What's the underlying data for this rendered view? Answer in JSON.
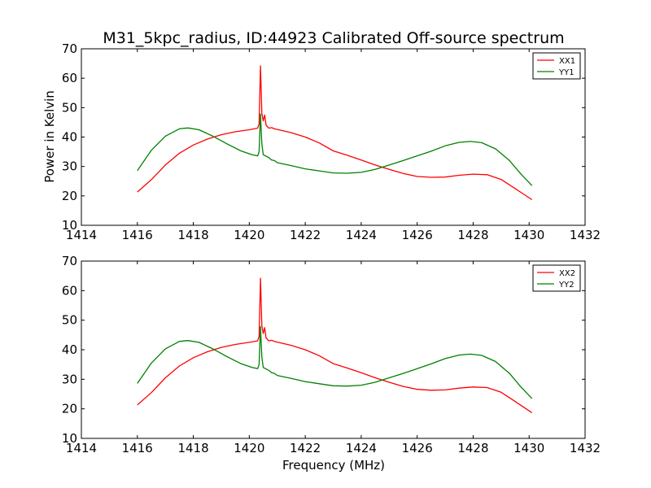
{
  "chart_data": [
    {
      "type": "line",
      "title": "M31_5kpc_radius, ID:44923 Calibrated Off-source spectrum",
      "xlabel": "",
      "ylabel": "Power in Kelvin",
      "xlim": [
        1414,
        1432
      ],
      "ylim": [
        10,
        70
      ],
      "xticks": [
        1414,
        1416,
        1418,
        1420,
        1422,
        1424,
        1426,
        1428,
        1430,
        1432
      ],
      "yticks": [
        10,
        20,
        30,
        40,
        50,
        60,
        70
      ],
      "grid": false,
      "legend_position": "top-right",
      "series": [
        {
          "name": "XX1",
          "color": "#ff0000",
          "points": [
            [
              1416.0,
              21.3
            ],
            [
              1416.5,
              25.5
            ],
            [
              1417.0,
              30.5
            ],
            [
              1417.5,
              34.5
            ],
            [
              1418.0,
              37.3
            ],
            [
              1418.5,
              39.3
            ],
            [
              1419.0,
              40.8
            ],
            [
              1419.5,
              41.8
            ],
            [
              1420.0,
              42.5
            ],
            [
              1420.3,
              43.0
            ],
            [
              1420.35,
              44.5
            ],
            [
              1420.4,
              64.2
            ],
            [
              1420.45,
              48.0
            ],
            [
              1420.5,
              45.5
            ],
            [
              1420.55,
              47.5
            ],
            [
              1420.6,
              44.0
            ],
            [
              1420.7,
              43.0
            ],
            [
              1420.8,
              43.2
            ],
            [
              1420.9,
              42.8
            ],
            [
              1421.0,
              42.6
            ],
            [
              1421.5,
              41.5
            ],
            [
              1422.0,
              40.0
            ],
            [
              1422.5,
              38.0
            ],
            [
              1423.0,
              35.3
            ],
            [
              1423.5,
              33.8
            ],
            [
              1424.0,
              32.2
            ],
            [
              1424.5,
              30.5
            ],
            [
              1425.0,
              29.0
            ],
            [
              1425.5,
              27.6
            ],
            [
              1426.0,
              26.6
            ],
            [
              1426.5,
              26.3
            ],
            [
              1427.0,
              26.4
            ],
            [
              1427.5,
              27.0
            ],
            [
              1428.0,
              27.4
            ],
            [
              1428.5,
              27.2
            ],
            [
              1429.0,
              25.6
            ],
            [
              1429.5,
              22.5
            ],
            [
              1430.1,
              18.7
            ]
          ]
        },
        {
          "name": "YY1",
          "color": "#008000",
          "points": [
            [
              1416.0,
              28.6
            ],
            [
              1416.5,
              35.5
            ],
            [
              1417.0,
              40.3
            ],
            [
              1417.5,
              42.8
            ],
            [
              1417.8,
              43.1
            ],
            [
              1418.2,
              42.5
            ],
            [
              1418.7,
              40.3
            ],
            [
              1419.2,
              37.7
            ],
            [
              1419.7,
              35.3
            ],
            [
              1420.1,
              34.0
            ],
            [
              1420.3,
              33.6
            ],
            [
              1420.35,
              35.0
            ],
            [
              1420.4,
              47.8
            ],
            [
              1420.45,
              37.5
            ],
            [
              1420.5,
              34.0
            ],
            [
              1420.7,
              33.0
            ],
            [
              1420.8,
              32.2
            ],
            [
              1420.9,
              32.0
            ],
            [
              1421.0,
              31.3
            ],
            [
              1421.5,
              30.3
            ],
            [
              1422.0,
              29.2
            ],
            [
              1422.5,
              28.5
            ],
            [
              1423.0,
              27.8
            ],
            [
              1423.5,
              27.7
            ],
            [
              1424.0,
              28.0
            ],
            [
              1424.5,
              29.0
            ],
            [
              1425.0,
              30.5
            ],
            [
              1425.5,
              32.0
            ],
            [
              1426.0,
              33.6
            ],
            [
              1426.5,
              35.2
            ],
            [
              1427.0,
              37.0
            ],
            [
              1427.5,
              38.2
            ],
            [
              1427.9,
              38.5
            ],
            [
              1428.3,
              38.1
            ],
            [
              1428.8,
              36.0
            ],
            [
              1429.3,
              32.0
            ],
            [
              1429.7,
              27.5
            ],
            [
              1430.1,
              23.5
            ]
          ]
        }
      ]
    },
    {
      "type": "line",
      "title": "",
      "xlabel": "Frequency (MHz)",
      "ylabel": "",
      "xlim": [
        1414,
        1432
      ],
      "ylim": [
        10,
        70
      ],
      "xticks": [
        1414,
        1416,
        1418,
        1420,
        1422,
        1424,
        1426,
        1428,
        1430,
        1432
      ],
      "yticks": [
        10,
        20,
        30,
        40,
        50,
        60,
        70
      ],
      "grid": false,
      "legend_position": "top-right",
      "series": [
        {
          "name": "XX2",
          "color": "#ff0000",
          "points": [
            [
              1416.0,
              21.3
            ],
            [
              1416.5,
              25.5
            ],
            [
              1417.0,
              30.5
            ],
            [
              1417.5,
              34.5
            ],
            [
              1418.0,
              37.3
            ],
            [
              1418.5,
              39.3
            ],
            [
              1419.0,
              40.8
            ],
            [
              1419.5,
              41.8
            ],
            [
              1420.0,
              42.5
            ],
            [
              1420.3,
              43.0
            ],
            [
              1420.35,
              44.5
            ],
            [
              1420.4,
              64.2
            ],
            [
              1420.45,
              48.0
            ],
            [
              1420.5,
              45.5
            ],
            [
              1420.55,
              47.5
            ],
            [
              1420.6,
              44.0
            ],
            [
              1420.7,
              43.0
            ],
            [
              1420.8,
              43.2
            ],
            [
              1420.9,
              42.8
            ],
            [
              1421.0,
              42.6
            ],
            [
              1421.5,
              41.5
            ],
            [
              1422.0,
              40.0
            ],
            [
              1422.5,
              38.0
            ],
            [
              1423.0,
              35.3
            ],
            [
              1423.5,
              33.8
            ],
            [
              1424.0,
              32.2
            ],
            [
              1424.5,
              30.5
            ],
            [
              1425.0,
              29.0
            ],
            [
              1425.5,
              27.6
            ],
            [
              1426.0,
              26.6
            ],
            [
              1426.5,
              26.3
            ],
            [
              1427.0,
              26.4
            ],
            [
              1427.5,
              27.0
            ],
            [
              1428.0,
              27.4
            ],
            [
              1428.5,
              27.2
            ],
            [
              1429.0,
              25.6
            ],
            [
              1429.5,
              22.5
            ],
            [
              1430.1,
              18.7
            ]
          ]
        },
        {
          "name": "YY2",
          "color": "#008000",
          "points": [
            [
              1416.0,
              28.6
            ],
            [
              1416.5,
              35.5
            ],
            [
              1417.0,
              40.3
            ],
            [
              1417.5,
              42.8
            ],
            [
              1417.8,
              43.1
            ],
            [
              1418.2,
              42.5
            ],
            [
              1418.7,
              40.3
            ],
            [
              1419.2,
              37.7
            ],
            [
              1419.7,
              35.3
            ],
            [
              1420.1,
              34.0
            ],
            [
              1420.3,
              33.6
            ],
            [
              1420.35,
              35.0
            ],
            [
              1420.4,
              47.8
            ],
            [
              1420.45,
              37.5
            ],
            [
              1420.5,
              34.0
            ],
            [
              1420.7,
              33.0
            ],
            [
              1420.8,
              32.2
            ],
            [
              1420.9,
              32.0
            ],
            [
              1421.0,
              31.3
            ],
            [
              1421.5,
              30.3
            ],
            [
              1422.0,
              29.2
            ],
            [
              1422.5,
              28.5
            ],
            [
              1423.0,
              27.8
            ],
            [
              1423.5,
              27.7
            ],
            [
              1424.0,
              28.0
            ],
            [
              1424.5,
              29.0
            ],
            [
              1425.0,
              30.5
            ],
            [
              1425.5,
              32.0
            ],
            [
              1426.0,
              33.6
            ],
            [
              1426.5,
              35.2
            ],
            [
              1427.0,
              37.0
            ],
            [
              1427.5,
              38.2
            ],
            [
              1427.9,
              38.5
            ],
            [
              1428.3,
              38.1
            ],
            [
              1428.8,
              36.0
            ],
            [
              1429.3,
              32.0
            ],
            [
              1429.7,
              27.5
            ],
            [
              1430.1,
              23.5
            ]
          ]
        }
      ]
    }
  ]
}
